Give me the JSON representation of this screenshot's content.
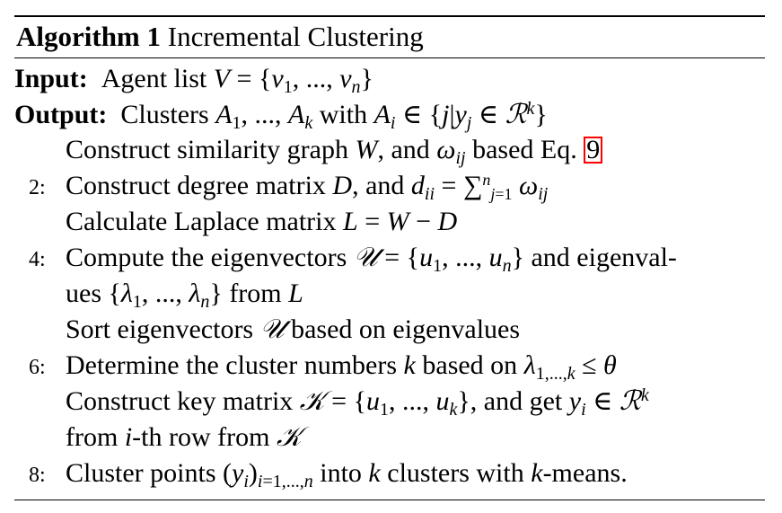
{
  "algorithm": {
    "label": "Algorithm 1",
    "title": "Incremental Clustering"
  },
  "input": {
    "label": "Input:",
    "text": "Agent list V = {v₁, ..., vₙ}"
  },
  "output": {
    "label": "Output:",
    "text": "Clusters A₁, ..., Aₖ with Aᵢ ∈ {j|yⱼ ∈ ℛᵏ}"
  },
  "steps": [
    {
      "num": "",
      "text_a": "Construct similarity graph ",
      "text_b": ", and ",
      "text_c": " based Eq. ",
      "ref": "9"
    },
    {
      "num": "2:",
      "text_a": "Construct degree matrix ",
      "text_b": ", and "
    },
    {
      "num": "",
      "text_a": "Calculate Laplace matrix "
    },
    {
      "num": "4:",
      "text_a": "Compute the eigenvectors ",
      "text_b": " and eigenval-"
    },
    {
      "num": "",
      "text_a": "ues ",
      "text_b": " from "
    },
    {
      "num": "",
      "text_a": "Sort eigenvectors ",
      "text_b": " based on eigenvalues"
    },
    {
      "num": "6:",
      "text_a": "Determine the cluster numbers ",
      "text_b": " based on "
    },
    {
      "num": "",
      "text_a": "Construct key matrix ",
      "text_b": ", and get "
    },
    {
      "num": "",
      "text_a": "from ",
      "text_b": "-th row from "
    },
    {
      "num": "8:",
      "text_a": "Cluster points ",
      "text_b": " into ",
      "text_c": " clusters with ",
      "text_d": "-means."
    }
  ]
}
